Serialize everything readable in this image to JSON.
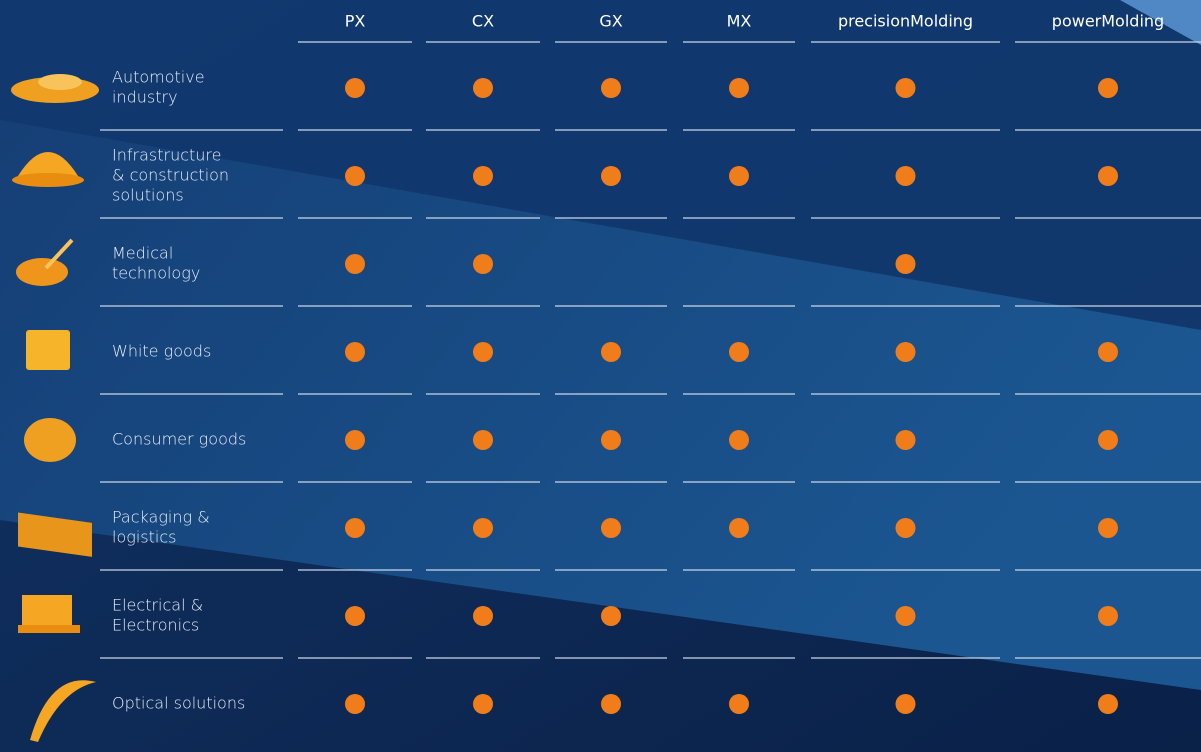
{
  "table": {
    "columns": [
      "PX",
      "CX",
      "GX",
      "MX",
      "precisionMolding",
      "powerMolding"
    ],
    "rows": [
      {
        "label": [
          "Automotive",
          "industry"
        ],
        "cells": [
          true,
          true,
          true,
          true,
          true,
          true
        ]
      },
      {
        "label": [
          "Infrastructure",
          "& construction",
          "solutions"
        ],
        "cells": [
          true,
          true,
          true,
          true,
          true,
          true
        ]
      },
      {
        "label": [
          "Medical",
          "technology"
        ],
        "cells": [
          true,
          true,
          false,
          false,
          true,
          false
        ]
      },
      {
        "label": [
          "White goods"
        ],
        "cells": [
          true,
          true,
          true,
          true,
          true,
          true
        ]
      },
      {
        "label": [
          "Consumer goods"
        ],
        "cells": [
          true,
          true,
          true,
          true,
          true,
          true
        ]
      },
      {
        "label": [
          "Packaging &",
          "logistics"
        ],
        "cells": [
          true,
          true,
          true,
          true,
          true,
          true
        ]
      },
      {
        "label": [
          "Electrical &",
          "Electronics"
        ],
        "cells": [
          true,
          true,
          true,
          false,
          true,
          true
        ]
      },
      {
        "label": [
          "Optical solutions"
        ],
        "cells": [
          true,
          true,
          true,
          true,
          true,
          true
        ]
      }
    ]
  }
}
